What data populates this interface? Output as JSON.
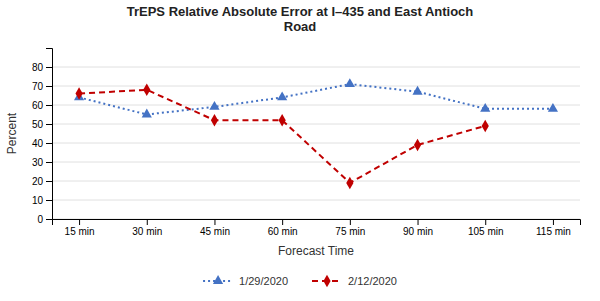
{
  "chart_data": {
    "type": "line",
    "title": "TrEPS Relative Absolute Error at I–435 and East Antioch\nRoad",
    "x_label": "Forecast Time",
    "y_label": "Percent",
    "categories": [
      "15 min",
      "30 min",
      "45 min",
      "60 min",
      "75 min",
      "90 min",
      "105 min",
      "115 min"
    ],
    "series": [
      {
        "name": "1/29/2020",
        "color": "#4472C4",
        "marker": "triangle",
        "line_style": "dotted",
        "values": [
          64,
          55,
          59,
          64,
          71,
          67,
          58,
          58
        ]
      },
      {
        "name": "2/12/2020",
        "color": "#C00000",
        "marker": "diamond",
        "line_style": "dashed",
        "values": [
          66,
          68,
          52,
          52,
          19,
          39,
          49,
          null
        ]
      }
    ],
    "ylim": [
      0,
      90
    ],
    "yticks": [
      0,
      10,
      20,
      30,
      40,
      50,
      60,
      70,
      80
    ],
    "grid": true,
    "legend": "bottom"
  }
}
